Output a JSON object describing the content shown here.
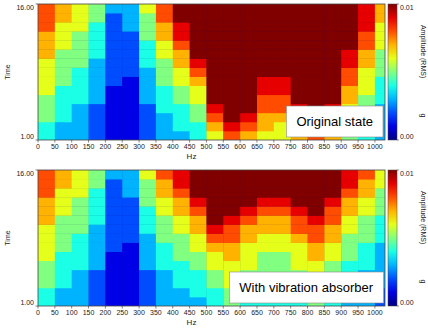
{
  "chart_data": [
    {
      "type": "heatmap",
      "x_label": "Hz",
      "y_label": "Time",
      "annotation": "Original state",
      "x": [
        0,
        50,
        100,
        150,
        200,
        250,
        300,
        350,
        400,
        450,
        500,
        550,
        600,
        650,
        700,
        750,
        800,
        850,
        900,
        950,
        1000,
        1050
      ],
      "y": [
        1,
        2,
        3,
        4,
        5,
        6,
        7,
        8,
        9,
        10,
        11,
        12,
        13,
        14,
        15,
        16
      ],
      "xlim": [
        0,
        1030
      ],
      "ylim": [
        1,
        16
      ],
      "xticks": [
        0,
        50,
        100,
        150,
        200,
        250,
        300,
        350,
        400,
        450,
        500,
        550,
        600,
        650,
        700,
        750,
        800,
        850,
        900,
        950,
        1000
      ],
      "yticks": [
        {
          "value": 1,
          "label": "1.00"
        },
        {
          "value": 16,
          "label": "16.00"
        }
      ],
      "grid": false,
      "colorbar": {
        "label": "Amplitude (RMS)",
        "unit": "g",
        "range": [
          0,
          0.01
        ],
        "ticks": [
          {
            "value": 0,
            "label": "0.00"
          },
          {
            "value": 0.01,
            "label": "0.01"
          }
        ]
      },
      "cells": [
        [
          0.004,
          0.003,
          0.003,
          0.002,
          0.001,
          0.001,
          0.002,
          0.003,
          0.003,
          0.004,
          0.006,
          0.008,
          0.007,
          0.006,
          0.006,
          0.007,
          0.008,
          0.007,
          0.005,
          0.004,
          0.003
        ],
        [
          0.004,
          0.003,
          0.003,
          0.002,
          0.001,
          0.001,
          0.002,
          0.003,
          0.004,
          0.004,
          0.007,
          0.009,
          0.008,
          0.007,
          0.006,
          0.008,
          0.009,
          0.008,
          0.005,
          0.004,
          0.003
        ],
        [
          0.005,
          0.004,
          0.003,
          0.002,
          0.001,
          0.001,
          0.002,
          0.003,
          0.004,
          0.005,
          0.008,
          0.01,
          0.009,
          0.007,
          0.007,
          0.008,
          0.01,
          0.009,
          0.006,
          0.004,
          0.003
        ],
        [
          0.005,
          0.004,
          0.003,
          0.002,
          0.001,
          0.001,
          0.002,
          0.004,
          0.004,
          0.005,
          0.009,
          0.011,
          0.01,
          0.008,
          0.008,
          0.009,
          0.011,
          0.009,
          0.006,
          0.005,
          0.003
        ],
        [
          0.005,
          0.004,
          0.004,
          0.003,
          0.001,
          0.001,
          0.003,
          0.004,
          0.005,
          0.006,
          0.01,
          0.012,
          0.01,
          0.008,
          0.008,
          0.01,
          0.012,
          0.01,
          0.007,
          0.005,
          0.004
        ],
        [
          0.006,
          0.004,
          0.004,
          0.003,
          0.001,
          0.001,
          0.003,
          0.004,
          0.005,
          0.006,
          0.011,
          0.012,
          0.011,
          0.009,
          0.009,
          0.01,
          0.012,
          0.011,
          0.007,
          0.006,
          0.004
        ],
        [
          0.006,
          0.005,
          0.004,
          0.003,
          0.002,
          0.001,
          0.003,
          0.005,
          0.006,
          0.007,
          0.011,
          0.012,
          0.011,
          0.009,
          0.009,
          0.011,
          0.012,
          0.011,
          0.008,
          0.006,
          0.004
        ],
        [
          0.006,
          0.005,
          0.004,
          0.003,
          0.002,
          0.002,
          0.003,
          0.005,
          0.006,
          0.008,
          0.012,
          0.012,
          0.011,
          0.01,
          0.01,
          0.011,
          0.012,
          0.011,
          0.008,
          0.006,
          0.005
        ],
        [
          0.006,
          0.005,
          0.005,
          0.003,
          0.002,
          0.002,
          0.004,
          0.005,
          0.007,
          0.009,
          0.012,
          0.012,
          0.012,
          0.01,
          0.01,
          0.011,
          0.012,
          0.012,
          0.009,
          0.007,
          0.005
        ],
        [
          0.007,
          0.005,
          0.005,
          0.004,
          0.002,
          0.002,
          0.004,
          0.006,
          0.007,
          0.01,
          0.012,
          0.012,
          0.012,
          0.011,
          0.01,
          0.012,
          0.012,
          0.012,
          0.009,
          0.007,
          0.005
        ],
        [
          0.007,
          0.006,
          0.005,
          0.004,
          0.002,
          0.002,
          0.004,
          0.006,
          0.008,
          0.01,
          0.012,
          0.012,
          0.012,
          0.011,
          0.011,
          0.012,
          0.012,
          0.012,
          0.01,
          0.008,
          0.006
        ],
        [
          0.007,
          0.006,
          0.005,
          0.004,
          0.002,
          0.002,
          0.005,
          0.007,
          0.009,
          0.011,
          0.012,
          0.012,
          0.012,
          0.011,
          0.011,
          0.012,
          0.012,
          0.012,
          0.01,
          0.008,
          0.006
        ],
        [
          0.008,
          0.006,
          0.006,
          0.004,
          0.002,
          0.003,
          0.005,
          0.007,
          0.009,
          0.011,
          0.012,
          0.012,
          0.012,
          0.012,
          0.011,
          0.012,
          0.012,
          0.012,
          0.01,
          0.009,
          0.006
        ],
        [
          0.008,
          0.007,
          0.006,
          0.005,
          0.002,
          0.003,
          0.005,
          0.008,
          0.01,
          0.012,
          0.012,
          0.012,
          0.012,
          0.012,
          0.012,
          0.012,
          0.012,
          0.012,
          0.011,
          0.009,
          0.007
        ],
        [
          0.008,
          0.007,
          0.006,
          0.005,
          0.003,
          0.003,
          0.006,
          0.008,
          0.01,
          0.012,
          0.012,
          0.012,
          0.012,
          0.012,
          0.012,
          0.012,
          0.012,
          0.012,
          0.011,
          0.009,
          0.007
        ]
      ]
    },
    {
      "type": "heatmap",
      "x_label": "Hz",
      "y_label": "Time",
      "annotation": "With vibration absorber",
      "x": [
        0,
        50,
        100,
        150,
        200,
        250,
        300,
        350,
        400,
        450,
        500,
        550,
        600,
        650,
        700,
        750,
        800,
        850,
        900,
        950,
        1000,
        1050
      ],
      "y": [
        1,
        2,
        3,
        4,
        5,
        6,
        7,
        8,
        9,
        10,
        11,
        12,
        13,
        14,
        15,
        16
      ],
      "xlim": [
        0,
        1030
      ],
      "ylim": [
        1,
        16
      ],
      "xticks": [
        0,
        50,
        100,
        150,
        200,
        250,
        300,
        350,
        400,
        450,
        500,
        550,
        600,
        650,
        700,
        750,
        800,
        850,
        900,
        950,
        1000
      ],
      "yticks": [
        {
          "value": 1,
          "label": "1.00"
        },
        {
          "value": 16,
          "label": "16.00"
        }
      ],
      "grid": false,
      "colorbar": {
        "label": "Amplitude (RMS)",
        "unit": "g",
        "range": [
          0,
          0.01
        ],
        "ticks": [
          {
            "value": 0,
            "label": "0.00"
          },
          {
            "value": 0.01,
            "label": "0.01"
          }
        ]
      },
      "cells": [
        [
          0.004,
          0.003,
          0.003,
          0.002,
          0.001,
          0.001,
          0.002,
          0.003,
          0.003,
          0.003,
          0.004,
          0.005,
          0.004,
          0.004,
          0.004,
          0.004,
          0.005,
          0.004,
          0.003,
          0.003,
          0.002
        ],
        [
          0.004,
          0.003,
          0.003,
          0.002,
          0.001,
          0.001,
          0.002,
          0.003,
          0.003,
          0.004,
          0.004,
          0.005,
          0.005,
          0.004,
          0.004,
          0.005,
          0.005,
          0.004,
          0.003,
          0.003,
          0.002
        ],
        [
          0.005,
          0.004,
          0.003,
          0.002,
          0.001,
          0.001,
          0.002,
          0.003,
          0.004,
          0.004,
          0.005,
          0.006,
          0.005,
          0.004,
          0.004,
          0.005,
          0.006,
          0.005,
          0.004,
          0.003,
          0.003
        ],
        [
          0.005,
          0.004,
          0.003,
          0.002,
          0.001,
          0.001,
          0.002,
          0.003,
          0.004,
          0.004,
          0.005,
          0.006,
          0.005,
          0.005,
          0.005,
          0.005,
          0.006,
          0.005,
          0.004,
          0.003,
          0.003
        ],
        [
          0.005,
          0.004,
          0.004,
          0.003,
          0.001,
          0.001,
          0.003,
          0.004,
          0.004,
          0.005,
          0.006,
          0.006,
          0.006,
          0.005,
          0.005,
          0.006,
          0.006,
          0.005,
          0.004,
          0.004,
          0.003
        ],
        [
          0.006,
          0.004,
          0.004,
          0.003,
          0.001,
          0.001,
          0.003,
          0.004,
          0.005,
          0.005,
          0.006,
          0.007,
          0.006,
          0.005,
          0.005,
          0.006,
          0.007,
          0.006,
          0.005,
          0.004,
          0.003
        ],
        [
          0.006,
          0.005,
          0.004,
          0.003,
          0.002,
          0.001,
          0.003,
          0.004,
          0.005,
          0.006,
          0.007,
          0.007,
          0.006,
          0.006,
          0.006,
          0.006,
          0.007,
          0.006,
          0.005,
          0.004,
          0.003
        ],
        [
          0.006,
          0.005,
          0.004,
          0.003,
          0.002,
          0.002,
          0.003,
          0.005,
          0.005,
          0.006,
          0.008,
          0.008,
          0.007,
          0.006,
          0.006,
          0.007,
          0.008,
          0.007,
          0.005,
          0.005,
          0.004
        ],
        [
          0.006,
          0.005,
          0.005,
          0.003,
          0.002,
          0.002,
          0.004,
          0.005,
          0.006,
          0.007,
          0.009,
          0.008,
          0.007,
          0.007,
          0.007,
          0.008,
          0.008,
          0.007,
          0.006,
          0.005,
          0.004
        ],
        [
          0.007,
          0.005,
          0.005,
          0.004,
          0.002,
          0.002,
          0.004,
          0.005,
          0.006,
          0.007,
          0.01,
          0.009,
          0.008,
          0.007,
          0.007,
          0.008,
          0.009,
          0.008,
          0.006,
          0.005,
          0.004
        ],
        [
          0.007,
          0.006,
          0.005,
          0.004,
          0.002,
          0.002,
          0.004,
          0.006,
          0.007,
          0.008,
          0.011,
          0.01,
          0.009,
          0.008,
          0.008,
          0.009,
          0.01,
          0.008,
          0.007,
          0.006,
          0.005
        ],
        [
          0.007,
          0.006,
          0.005,
          0.004,
          0.002,
          0.002,
          0.005,
          0.006,
          0.007,
          0.009,
          0.012,
          0.011,
          0.01,
          0.009,
          0.009,
          0.01,
          0.011,
          0.009,
          0.007,
          0.006,
          0.005
        ],
        [
          0.008,
          0.006,
          0.006,
          0.004,
          0.002,
          0.003,
          0.005,
          0.007,
          0.008,
          0.01,
          0.012,
          0.012,
          0.011,
          0.01,
          0.01,
          0.011,
          0.012,
          0.01,
          0.008,
          0.007,
          0.005
        ],
        [
          0.008,
          0.007,
          0.006,
          0.005,
          0.002,
          0.003,
          0.005,
          0.007,
          0.009,
          0.011,
          0.012,
          0.012,
          0.012,
          0.011,
          0.011,
          0.012,
          0.012,
          0.011,
          0.009,
          0.007,
          0.006
        ],
        [
          0.008,
          0.007,
          0.006,
          0.005,
          0.003,
          0.003,
          0.006,
          0.008,
          0.009,
          0.011,
          0.012,
          0.012,
          0.012,
          0.012,
          0.011,
          0.012,
          0.012,
          0.012,
          0.009,
          0.008,
          0.006
        ]
      ]
    }
  ]
}
